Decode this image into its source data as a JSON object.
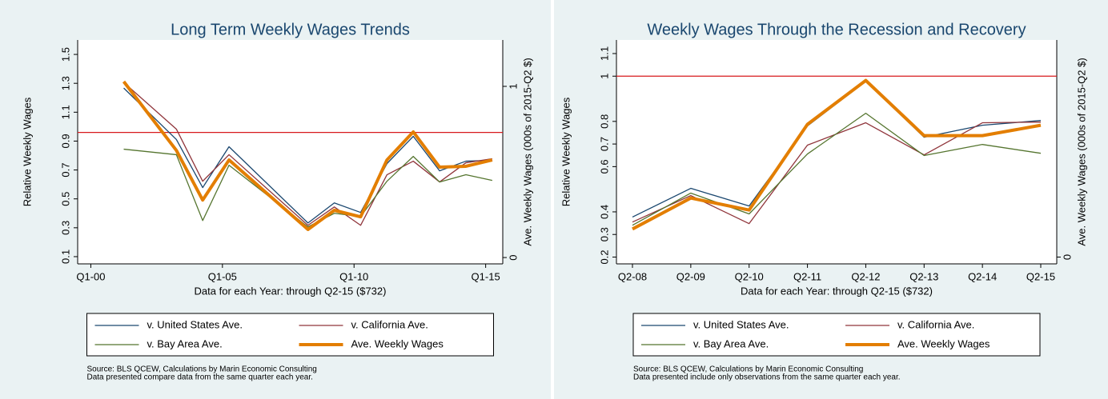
{
  "chart_data": [
    {
      "type": "line",
      "title": "Long Term Weekly Wages Trends",
      "x_label": "Data for each Year: through Q2-15 ($732)",
      "y_label": "Relative Weekly Wages",
      "y2_label": "Ave. Weekly Wages (000s of 2015-Q2 $)",
      "x": [
        2001.25,
        2003.25,
        2004.25,
        2005.25,
        2008.25,
        2009.25,
        2010.25,
        2011.25,
        2012.25,
        2013.25,
        2014.25,
        2015.25
      ],
      "xlim": [
        1999.5,
        2015.65
      ],
      "xticks": [
        {
          "value": 2000,
          "label": "Q1-00"
        },
        {
          "value": 2005,
          "label": "Q1-05"
        },
        {
          "value": 2010,
          "label": "Q1-10"
        },
        {
          "value": 2015,
          "label": "Q1-15"
        }
      ],
      "ylim": [
        0.05,
        1.6
      ],
      "yticks": [
        0.1,
        0.3,
        0.5,
        0.7,
        0.9,
        1.1,
        1.3,
        1.5
      ],
      "y2lim": [
        -0.037,
        1.271
      ],
      "y2ticks": [
        0,
        1
      ],
      "reference_line": {
        "value": 0.96,
        "color": "#d7191c"
      },
      "series": [
        {
          "name": "v. United States Ave.",
          "color": "#1a476f",
          "values": [
            1.267,
            0.911,
            0.578,
            0.861,
            0.333,
            0.472,
            0.406,
            0.744,
            0.933,
            0.694,
            0.761,
            0.767
          ]
        },
        {
          "name": "v. California Ave.",
          "color": "#90353b",
          "values": [
            1.306,
            0.983,
            0.622,
            0.806,
            0.317,
            0.444,
            0.317,
            0.667,
            0.761,
            0.617,
            0.75,
            0.778
          ]
        },
        {
          "name": "v. Bay Area Ave.",
          "color": "#55752f",
          "values": [
            0.844,
            0.806,
            0.35,
            0.733,
            0.306,
            0.4,
            0.378,
            0.622,
            0.794,
            0.617,
            0.667,
            0.628
          ]
        },
        {
          "name": "Ave. Weekly Wages",
          "color": "#e37e00",
          "axis": "y2",
          "values": [
            1.028,
            0.626,
            0.336,
            0.57,
            0.164,
            0.276,
            0.238,
            0.57,
            0.734,
            0.528,
            0.533,
            0.57
          ]
        }
      ],
      "source_notes": [
        "Source: BLS QCEW, Calculations by Marin Economic Consulting",
        "Data presented compare data from the same quarter each year."
      ]
    },
    {
      "type": "line",
      "title": "Weekly Wages Through the Recession and Recovery",
      "x_label": "Data for each Year: through Q2-15 ($732)",
      "y_label": "Relative Weekly Wages",
      "y2_label": "Ave. Weekly Wages (000s of 2015-Q2 $)",
      "categories": [
        "Q2-08",
        "Q2-09",
        "Q2-10",
        "Q2-11",
        "Q2-12",
        "Q2-13",
        "Q2-14",
        "Q2-15"
      ],
      "ylim": [
        0.17,
        1.16
      ],
      "yticks": [
        0.2,
        0.3,
        0.4,
        0.6,
        0.7,
        0.8,
        1.0,
        1.1
      ],
      "y2lim": [
        -0.03,
        0.96
      ],
      "y2ticks": [
        0
      ],
      "reference_line": {
        "value": 1.0,
        "color": "#d7191c"
      },
      "series": [
        {
          "name": "v. United States Ave.",
          "color": "#1a476f",
          "values": [
            0.377,
            0.504,
            0.426,
            0.78,
            0.977,
            0.73,
            0.783,
            0.804
          ]
        },
        {
          "name": "v. California Ave.",
          "color": "#90353b",
          "values": [
            0.355,
            0.472,
            0.348,
            0.695,
            0.794,
            0.652,
            0.794,
            0.797
          ]
        },
        {
          "name": "v. Bay Area Ave.",
          "color": "#55752f",
          "values": [
            0.341,
            0.483,
            0.391,
            0.656,
            0.836,
            0.649,
            0.698,
            0.659
          ]
        },
        {
          "name": "Ave. Weekly Wages",
          "color": "#e37e00",
          "values": [
            0.324,
            0.461,
            0.408,
            0.787,
            0.981,
            0.737,
            0.737,
            0.783
          ]
        }
      ],
      "source_notes": [
        "Source: BLS QCEW, Calculations by Marin Economic Consulting",
        "Data presented include only observations from the same quarter each year."
      ]
    }
  ]
}
